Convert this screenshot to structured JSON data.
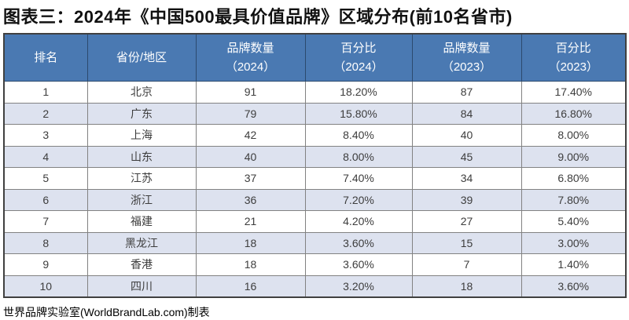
{
  "title": "图表三：2024年《中国500最具价值品牌》区域分布(前10名省市)",
  "footer": "世界品牌实验室(WorldBrandLab.com)制表",
  "colors": {
    "header_bg": "#4a79b2",
    "header_text": "#ffffff",
    "header_border": "#2c4a6e",
    "row_alt_bg": "#dde2ef",
    "grid_border": "#828282",
    "outer_border": "#404040",
    "body_text": "#3d3d3d"
  },
  "chart_data": {
    "type": "table",
    "title": "图表三：2024年《中国500最具价值品牌》区域分布(前10名省市)",
    "source_note": "世界品牌实验室(WorldBrandLab.com)制表",
    "columns": [
      "排名",
      "省份/地区",
      "品牌数量\n（2024）",
      "百分比\n（2024）",
      "品牌数量\n（2023）",
      "百分比\n（2023）"
    ],
    "rows": [
      [
        "1",
        "北京",
        "91",
        "18.20%",
        "87",
        "17.40%"
      ],
      [
        "2",
        "广东",
        "79",
        "15.80%",
        "84",
        "16.80%"
      ],
      [
        "3",
        "上海",
        "42",
        "8.40%",
        "40",
        "8.00%"
      ],
      [
        "4",
        "山东",
        "40",
        "8.00%",
        "45",
        "9.00%"
      ],
      [
        "5",
        "江苏",
        "37",
        "7.40%",
        "34",
        "6.80%"
      ],
      [
        "6",
        "浙江",
        "36",
        "7.20%",
        "39",
        "7.80%"
      ],
      [
        "7",
        "福建",
        "21",
        "4.20%",
        "27",
        "5.40%"
      ],
      [
        "8",
        "黑龙江",
        "18",
        "3.60%",
        "15",
        "3.00%"
      ],
      [
        "9",
        "香港",
        "18",
        "3.60%",
        "7",
        "1.40%"
      ],
      [
        "10",
        "四川",
        "16",
        "3.20%",
        "18",
        "3.60%"
      ]
    ]
  }
}
